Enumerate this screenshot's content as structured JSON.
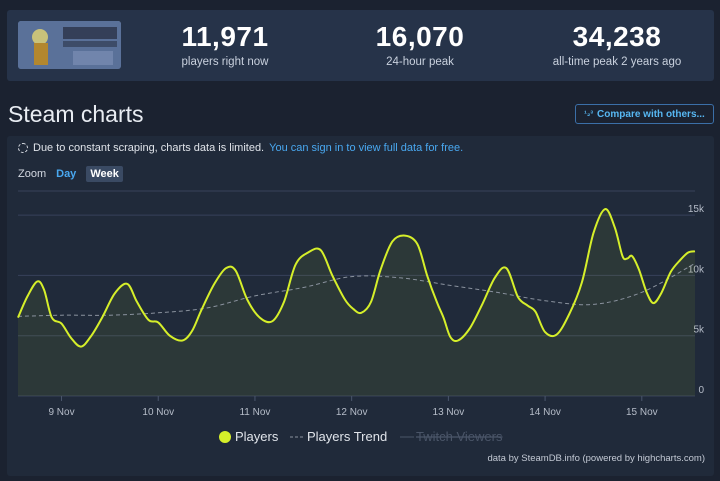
{
  "stats": {
    "players_now": "11,971",
    "players_now_label": "players right now",
    "peak_24h": "16,070",
    "peak_24h_label": "24-hour peak",
    "all_time_peak": "34,238",
    "all_time_peak_label": "all-time peak 2 years ago"
  },
  "game_image_alt": "SATISFACTORY",
  "section_title": "Steam charts",
  "compare_button": "Compare with others...",
  "notice": {
    "text": "Due to constant scraping, charts data is limited.",
    "link": "You can sign in to view full data for free."
  },
  "zoom": {
    "label": "Zoom",
    "day": "Day",
    "week": "Week",
    "selected": "Week"
  },
  "credit": "data by SteamDB.info (powered by highcharts.com)",
  "colors": {
    "players": "#d6ef2a",
    "trend": "#8a929e",
    "twitch": "#4a5568",
    "grid": "#37425a"
  },
  "chart_data": {
    "type": "line",
    "xlabel": "",
    "ylabel": "",
    "ylim": [
      0,
      17000
    ],
    "y_ticks": [
      "0",
      "5k",
      "10k",
      "15k"
    ],
    "x_tick_labels": [
      "9 Nov",
      "10 Nov",
      "11 Nov",
      "12 Nov",
      "13 Nov",
      "14 Nov",
      "15 Nov"
    ],
    "x_range": [
      8.55,
      15.55
    ],
    "legend": [
      "Players",
      "Players Trend",
      "Twitch Viewers"
    ],
    "legend_position": "bottom-center",
    "series": [
      {
        "name": "Players",
        "x": [
          8.55,
          8.65,
          8.75,
          8.82,
          8.9,
          9.0,
          9.1,
          9.2,
          9.3,
          9.42,
          9.55,
          9.68,
          9.78,
          9.9,
          10.0,
          10.12,
          10.25,
          10.35,
          10.45,
          10.58,
          10.7,
          10.8,
          10.92,
          11.05,
          11.18,
          11.3,
          11.42,
          11.55,
          11.68,
          11.8,
          11.93,
          12.02,
          12.1,
          12.2,
          12.3,
          12.42,
          12.55,
          12.68,
          12.78,
          12.88,
          12.95,
          13.02,
          13.1,
          13.22,
          13.35,
          13.48,
          13.6,
          13.72,
          13.82,
          13.9,
          14.0,
          14.12,
          14.25,
          14.38,
          14.5,
          14.62,
          14.72,
          14.8,
          14.85,
          14.9,
          14.97,
          15.05,
          15.12,
          15.2,
          15.3,
          15.4,
          15.48,
          15.55
        ],
        "values": [
          6500,
          8300,
          9500,
          8800,
          6500,
          6000,
          4800,
          4100,
          4900,
          6500,
          8500,
          9300,
          7800,
          6300,
          6100,
          5000,
          4600,
          5400,
          7200,
          9300,
          10600,
          10400,
          8000,
          6500,
          6200,
          7800,
          10900,
          11900,
          12100,
          10000,
          8000,
          7200,
          6900,
          7800,
          10500,
          12800,
          13300,
          12600,
          10000,
          7800,
          6500,
          4900,
          4600,
          5600,
          7600,
          9800,
          10600,
          8200,
          7500,
          7000,
          5300,
          5100,
          6800,
          9400,
          13500,
          15500,
          14000,
          11600,
          11400,
          11600,
          10500,
          8600,
          7700,
          8500,
          10300,
          11300,
          11900,
          12000
        ]
      },
      {
        "name": "Players Trend",
        "x": [
          8.55,
          9.0,
          9.5,
          10.0,
          10.5,
          11.0,
          11.5,
          12.0,
          12.5,
          13.0,
          13.5,
          14.0,
          14.5,
          15.0,
          15.55
        ],
        "values": [
          6600,
          6700,
          6700,
          6900,
          7300,
          8300,
          9000,
          9900,
          9800,
          9200,
          8600,
          7900,
          7600,
          8600,
          11000
        ]
      },
      {
        "name": "Twitch Viewers",
        "x": [],
        "values": []
      }
    ]
  }
}
